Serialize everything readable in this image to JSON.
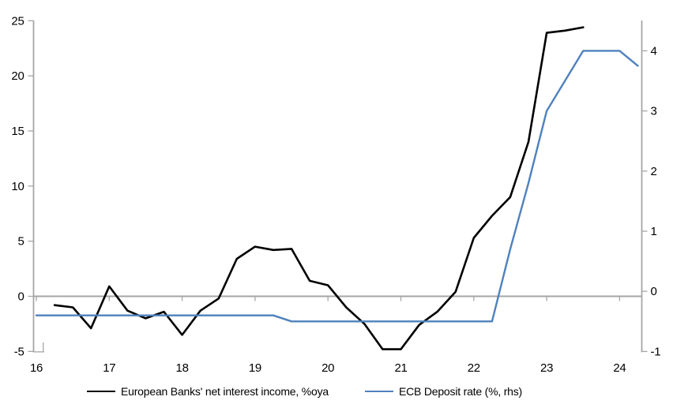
{
  "chart_data": {
    "type": "line",
    "title": "",
    "x_axis": {
      "tick_labels": [
        "16",
        "17",
        "18",
        "19",
        "20",
        "21",
        "22",
        "23",
        "24"
      ],
      "unit": "year (2016-2024, quarterly data)"
    },
    "left_axis": {
      "min": -5,
      "max": 25,
      "ticks": [
        25,
        20,
        15,
        10,
        5,
        0,
        -5
      ],
      "grid": "zero-line-only"
    },
    "right_axis": {
      "min": -1,
      "max": 4.5,
      "ticks": [
        4,
        3,
        2,
        1,
        0,
        -1
      ]
    },
    "legend_position": "bottom",
    "colors": {
      "nii_line": "#000000",
      "deposit_line": "#4F81BD",
      "axis": "#A6A6A6"
    },
    "series": [
      {
        "name": "European Banks' net interest income, %oya",
        "axis": "left",
        "color": "#000000",
        "x": [
          16.25,
          16.5,
          16.75,
          17.0,
          17.25,
          17.5,
          17.75,
          18.0,
          18.25,
          18.5,
          18.75,
          19.0,
          19.25,
          19.5,
          19.75,
          20.0,
          20.25,
          20.5,
          20.75,
          21.0,
          21.25,
          21.5,
          21.75,
          22.0,
          22.25,
          22.5,
          22.75,
          23.0,
          23.25,
          23.5
        ],
        "values": [
          -0.8,
          -1.0,
          -2.9,
          0.9,
          -1.3,
          -2.0,
          -1.4,
          -3.5,
          -1.3,
          -0.2,
          3.4,
          4.5,
          4.2,
          4.3,
          1.4,
          1.0,
          -1.0,
          -2.5,
          -4.8,
          -4.8,
          -2.6,
          -1.4,
          0.4,
          5.3,
          7.3,
          9.0,
          14.0,
          23.9,
          24.1,
          24.4
        ]
      },
      {
        "name": "ECB Deposit rate (%, rhs)",
        "axis": "right",
        "color": "#4F81BD",
        "x": [
          16.0,
          16.25,
          16.5,
          16.75,
          17.0,
          17.25,
          17.5,
          17.75,
          18.0,
          18.25,
          18.5,
          18.75,
          19.0,
          19.25,
          19.5,
          19.75,
          20.0,
          20.25,
          20.5,
          20.75,
          21.0,
          21.25,
          21.5,
          21.75,
          22.0,
          22.25,
          22.5,
          22.75,
          23.0,
          23.25,
          23.5,
          23.75,
          24.0,
          24.25
        ],
        "values": [
          -0.4,
          -0.4,
          -0.4,
          -0.4,
          -0.4,
          -0.4,
          -0.4,
          -0.4,
          -0.4,
          -0.4,
          -0.4,
          -0.4,
          -0.4,
          -0.4,
          -0.5,
          -0.5,
          -0.5,
          -0.5,
          -0.5,
          -0.5,
          -0.5,
          -0.5,
          -0.5,
          -0.5,
          -0.5,
          -0.5,
          0.7,
          1.8,
          3.0,
          3.5,
          4.0,
          4.0,
          4.0,
          3.75
        ]
      }
    ]
  }
}
